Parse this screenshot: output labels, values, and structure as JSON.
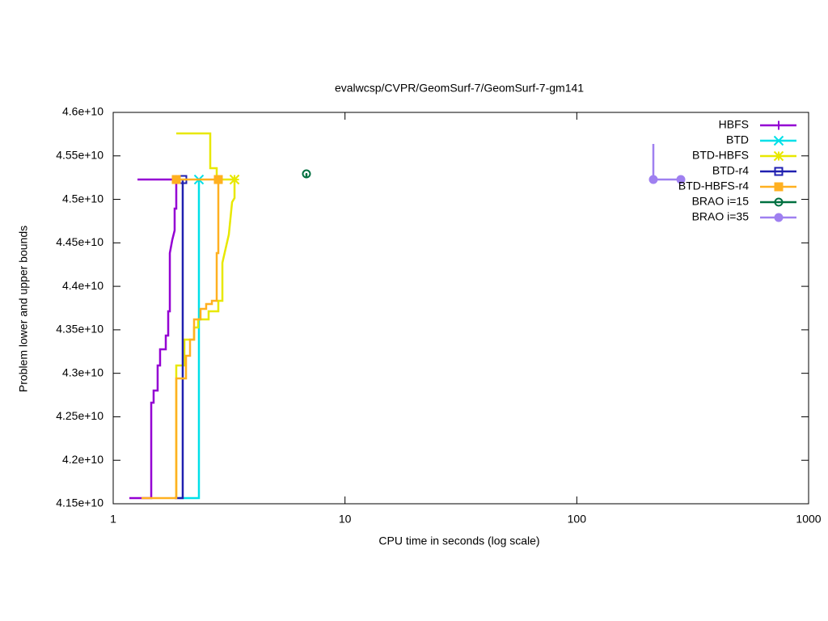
{
  "chart_data": {
    "type": "line",
    "title": "evalwcsp/CVPR/GeomSurf-7/GeomSurf-7-gm141",
    "x_label": "CPU time in seconds (log scale)",
    "y_label": "Problem lower and upper bounds",
    "xlim": [
      1,
      1000
    ],
    "xticks": [
      1,
      10,
      100,
      1000
    ],
    "xlog": true,
    "ylim": [
      41500000000,
      46000000000
    ],
    "yticks": [
      {
        "value": 41500000000,
        "label": "4.15e+10"
      },
      {
        "value": 42000000000,
        "label": "4.2e+10"
      },
      {
        "value": 42500000000,
        "label": "4.25e+10"
      },
      {
        "value": 43000000000,
        "label": "4.3e+10"
      },
      {
        "value": 43500000000,
        "label": "4.35e+10"
      },
      {
        "value": 44000000000,
        "label": "4.4e+10"
      },
      {
        "value": 44500000000,
        "label": "4.45e+10"
      },
      {
        "value": 45000000000,
        "label": "4.5e+10"
      },
      {
        "value": 45500000000,
        "label": "4.55e+10"
      },
      {
        "value": 46000000000,
        "label": "4.6e+10"
      }
    ],
    "grid": false,
    "legend": "top-right",
    "series": [
      {
        "name": "HBFS",
        "color": "#9400d3",
        "marker": "plus",
        "x": [
          1.174,
          1.459,
          1.459,
          1.494,
          1.494,
          1.555,
          1.555,
          1.593,
          1.593,
          1.686,
          1.686,
          1.727,
          1.727,
          1.755,
          1.755,
          1.797,
          1.841,
          1.841,
          1.871,
          1.871,
          null,
          1.273,
          1.871
        ],
        "values": [
          41565000000,
          41565000000,
          42662000000,
          42662000000,
          42802000000,
          42802000000,
          43090000000,
          43090000000,
          43276000000,
          43276000000,
          43434000000,
          43434000000,
          43713000000,
          43713000000,
          44382000000,
          44531000000,
          44643000000,
          44894000000,
          44894000000,
          45228000000,
          null,
          45228000000,
          45228000000
        ]
      },
      {
        "name": "BTD",
        "color": "#00e0e8",
        "marker": "cross",
        "x": [
          1.932,
          2.343,
          2.343
        ],
        "values": [
          41565000000,
          41565000000,
          45228000000
        ]
      },
      {
        "name": "BTD-HBFS",
        "color": "#e8e800",
        "marker": "star",
        "x": [
          1.871,
          1.871,
          2.028,
          2.028,
          2.233,
          2.233,
          2.324,
          2.324,
          2.58,
          2.58,
          2.841,
          2.841,
          2.958,
          2.958,
          3.154,
          3.257,
          3.337,
          3.337,
          null,
          1.871,
          2.622,
          2.622,
          2.796,
          2.796,
          3.337
        ],
        "values": [
          41565000000,
          43090000000,
          43090000000,
          43387000000,
          43387000000,
          43527000000,
          43527000000,
          43620000000,
          43620000000,
          43713000000,
          43713000000,
          43834000000,
          43834000000,
          44271000000,
          44596000000,
          44968000000,
          45015000000,
          45228000000,
          null,
          45758000000,
          45758000000,
          45359000000,
          45359000000,
          45228000000,
          45228000000
        ]
      },
      {
        "name": "BTD-r4",
        "color": "#2020b0",
        "marker": "square-open",
        "x": [
          1.841,
          1.995,
          1.995
        ],
        "values": [
          41565000000,
          41565000000,
          45228000000
        ]
      },
      {
        "name": "BTD-HBFS-r4",
        "color": "#ffb020",
        "marker": "square",
        "x": [
          1.325,
          1.871,
          1.871,
          2.061,
          2.061,
          2.145,
          2.145,
          2.233,
          2.233,
          2.381,
          2.381,
          2.518,
          2.518,
          2.665,
          2.665,
          2.796,
          2.796,
          2.841,
          2.841,
          null,
          2.841,
          1.871
        ],
        "values": [
          41565000000,
          41565000000,
          42941000000,
          42941000000,
          43201000000,
          43201000000,
          43387000000,
          43387000000,
          43620000000,
          43620000000,
          43741000000,
          43741000000,
          43797000000,
          43797000000,
          43834000000,
          43834000000,
          44382000000,
          44382000000,
          45228000000,
          null,
          45228000000,
          45228000000
        ]
      },
      {
        "name": "BRAO i=15",
        "color": "#007040",
        "marker": "circle-open",
        "x": [
          6.818,
          6.818
        ],
        "values": [
          45246000000,
          45293000000
        ]
      },
      {
        "name": "BRAO i=35",
        "color": "#9f80f0",
        "marker": "circle",
        "x": [
          213.9,
          213.9,
          281.1,
          null,
          213.9
        ],
        "values": [
          45637000000,
          45228000000,
          45228000000,
          null,
          45228000000
        ]
      }
    ]
  }
}
